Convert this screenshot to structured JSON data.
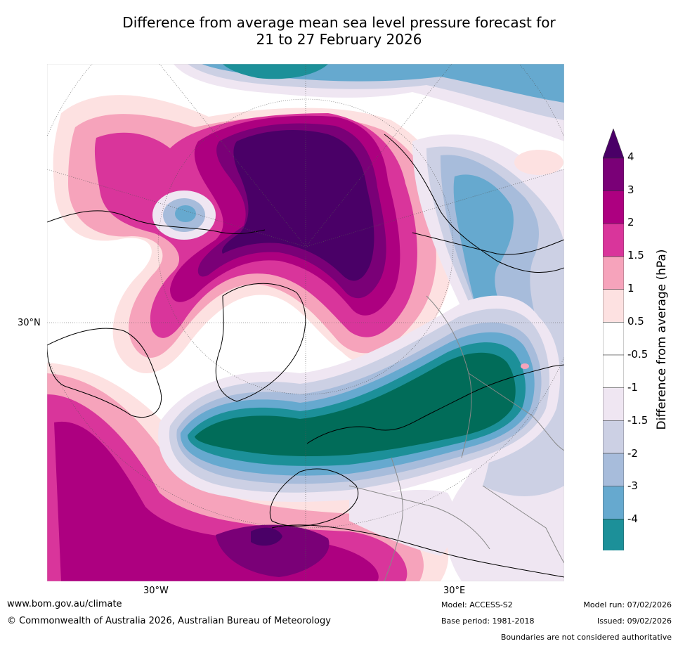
{
  "title": {
    "line1": "Difference from average mean sea level pressure forecast for",
    "line2": "21 to 27 February 2026"
  },
  "map": {
    "latitude_label": "30°N",
    "longitude_labels": [
      "30°W",
      "30°E"
    ]
  },
  "legend": {
    "axis_title": "Difference from average (hPa)",
    "ticks": [
      "4",
      "3",
      "2",
      "1.5",
      "1",
      "0.5",
      "-0.5",
      "-1",
      "-1.5",
      "-2",
      "-3",
      "-4"
    ],
    "colors": {
      "above_4": "#4a0067",
      "3_to_4": "#7a0077",
      "2_to_3": "#ad0080",
      "1.5_to_2": "#d9359b",
      "1_to_1.5": "#f6a3bb",
      "0.5_to_1": "#fde1e1",
      "neutral": "#ffffff",
      "-1_to_-0.5": "#efe6f2",
      "-1.5_to_-1": "#ccd0e4",
      "-2_to_-1.5": "#a7bcdb",
      "-3_to_-2": "#66a9cf",
      "-4_to_-3": "#1c9099",
      "below_-4": "#016c59"
    }
  },
  "footer": {
    "website": "www.bom.gov.au/climate",
    "copyright": "© Commonwealth of Australia 2026, Australian Bureau of Meteorology",
    "model": "Model: ACCESS-S2",
    "base_period": "Base period: 1981-2018",
    "model_run": "Model run: 07/02/2026",
    "issued": "Issued: 09/02/2026",
    "disclaimer": "Boundaries are not considered authoritative"
  }
}
